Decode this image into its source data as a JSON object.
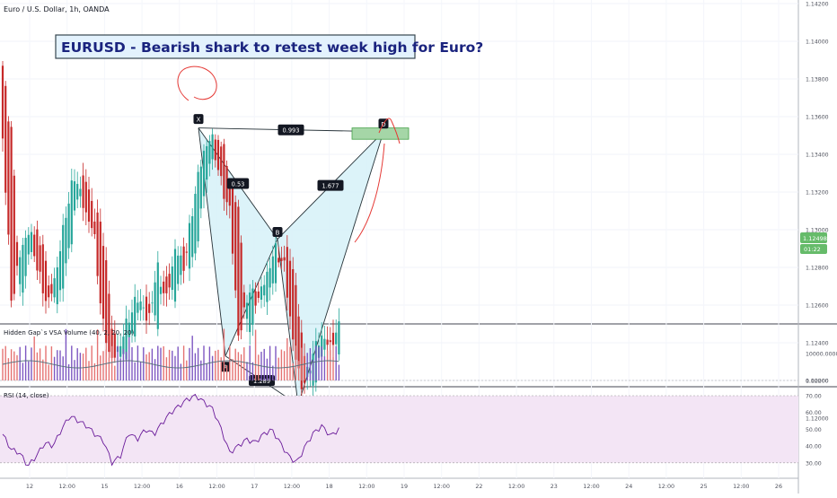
{
  "symbol_title": "Euro / U.S. Dollar, 1h, OANDA",
  "headline": "EURUSD - Bearish shark to retest week high for Euro?",
  "colors": {
    "bull": "#26a69a",
    "bear": "#c62828",
    "pattern_fill": "#d6f1f8",
    "zone_fill": "#a5d6a7",
    "zone_stroke": "#43a047",
    "rsi_band": "#f3e5f5",
    "rsi_line": "#6a1b9a",
    "vol_ma": "#546e7a",
    "vol_bull": "#7e57c2",
    "vol_bear": "#e57373",
    "price_tag": "#66bb6a"
  },
  "price_axis": {
    "ticks": [
      "1.14200",
      "1.14000",
      "1.13800",
      "1.13600",
      "1.13400",
      "1.13200",
      "1.13000",
      "1.12800",
      "1.12600",
      "1.12400",
      "1.12200",
      "1.12000"
    ],
    "last_price": "1.12498",
    "countdown": "01:22"
  },
  "time_axis": {
    "labels": [
      "12",
      "12:00",
      "15",
      "12:00",
      "16",
      "12:00",
      "17",
      "12:00",
      "18",
      "12:00",
      "19",
      "12:00",
      "22",
      "12:00",
      "23",
      "12:00",
      "24",
      "12:00",
      "25",
      "12:00",
      "26"
    ]
  },
  "pattern": {
    "points": [
      "X",
      "A",
      "B",
      "C",
      "D"
    ],
    "ratios": {
      "xd": "0.993",
      "xab": "0.53",
      "bd": "1.677",
      "ac": "1.289"
    }
  },
  "volume_panel": {
    "label": "Hidden Gap`s VSA Volume (40, 2, 20, 20)",
    "ticks": [
      "10000.00000",
      "0.00000"
    ]
  },
  "rsi_panel": {
    "label": "RSI (14, close)",
    "ticks": [
      "70.00",
      "60.00",
      "50.00",
      "40.00",
      "30.00"
    ]
  },
  "chart_data": {
    "type": "candlestick",
    "interval": "1h",
    "ylim": [
      1.1192,
      1.1428
    ],
    "ohlc_sampled": [
      [
        1.1385,
        1.139,
        1.134,
        1.135
      ],
      [
        1.135,
        1.136,
        1.125,
        1.126
      ],
      [
        1.126,
        1.13,
        1.1235,
        1.129
      ],
      [
        1.129,
        1.132,
        1.127,
        1.13
      ],
      [
        1.13,
        1.131,
        1.1265,
        1.1275
      ],
      [
        1.1275,
        1.129,
        1.125,
        1.126
      ],
      [
        1.126,
        1.1285,
        1.1245,
        1.128
      ],
      [
        1.128,
        1.132,
        1.1275,
        1.131
      ],
      [
        1.131,
        1.134,
        1.129,
        1.133
      ],
      [
        1.133,
        1.1335,
        1.13,
        1.131
      ],
      [
        1.131,
        1.132,
        1.128,
        1.13
      ],
      [
        1.13,
        1.131,
        1.124,
        1.125
      ],
      [
        1.125,
        1.127,
        1.122,
        1.123
      ],
      [
        1.123,
        1.1255,
        1.1215,
        1.124
      ],
      [
        1.124,
        1.126,
        1.123,
        1.1255
      ],
      [
        1.1255,
        1.1275,
        1.1245,
        1.1265
      ],
      [
        1.1265,
        1.128,
        1.124,
        1.125
      ],
      [
        1.125,
        1.1285,
        1.1245,
        1.128
      ],
      [
        1.128,
        1.129,
        1.1255,
        1.1262
      ],
      [
        1.1262,
        1.13,
        1.1255,
        1.129
      ],
      [
        1.129,
        1.131,
        1.127,
        1.128
      ],
      [
        1.128,
        1.132,
        1.1275,
        1.1315
      ],
      [
        1.1315,
        1.135,
        1.1305,
        1.134
      ],
      [
        1.134,
        1.1355,
        1.132,
        1.135
      ],
      [
        1.135,
        1.1357,
        1.132,
        1.1325
      ],
      [
        1.1325,
        1.1335,
        1.13,
        1.131
      ],
      [
        1.131,
        1.1315,
        1.1232,
        1.124
      ],
      [
        1.124,
        1.1275,
        1.1235,
        1.1268
      ],
      [
        1.1268,
        1.1285,
        1.1255,
        1.1262
      ],
      [
        1.1262,
        1.128,
        1.1255,
        1.1275
      ],
      [
        1.1275,
        1.1295,
        1.1268,
        1.129
      ],
      [
        1.129,
        1.1298,
        1.1275,
        1.128
      ],
      [
        1.128,
        1.1282,
        1.1232,
        1.1238
      ],
      [
        1.1238,
        1.1255,
        1.121,
        1.1215
      ],
      [
        1.1215,
        1.1238,
        1.1208,
        1.1232
      ],
      [
        1.1232,
        1.1248,
        1.1228,
        1.1244
      ],
      [
        1.1244,
        1.125,
        1.123,
        1.1238
      ],
      [
        1.1238,
        1.1252,
        1.1232,
        1.1248
      ]
    ],
    "harmonic_pattern": {
      "name": "shark",
      "X": 1.1354,
      "A": 1.1233,
      "B": 1.1295,
      "C": 1.1207,
      "D": 1.1352,
      "ratios": {
        "XD": 0.993,
        "XAB": 0.53,
        "BD": 1.677,
        "AC": 1.289
      },
      "target_zone": [
        1.1348,
        1.1354
      ]
    },
    "volume_ylim": [
      0,
      17000
    ],
    "rsi_ylim": [
      25,
      72
    ],
    "rsi_sampled": [
      47,
      38,
      36,
      28,
      34,
      42,
      40,
      50,
      58,
      55,
      52,
      47,
      43,
      30,
      34,
      48,
      44,
      50,
      47,
      54,
      60,
      64,
      68,
      70,
      66,
      62,
      50,
      36,
      40,
      44,
      42,
      47,
      50,
      42,
      34,
      30,
      40,
      48,
      52,
      46,
      50
    ]
  }
}
